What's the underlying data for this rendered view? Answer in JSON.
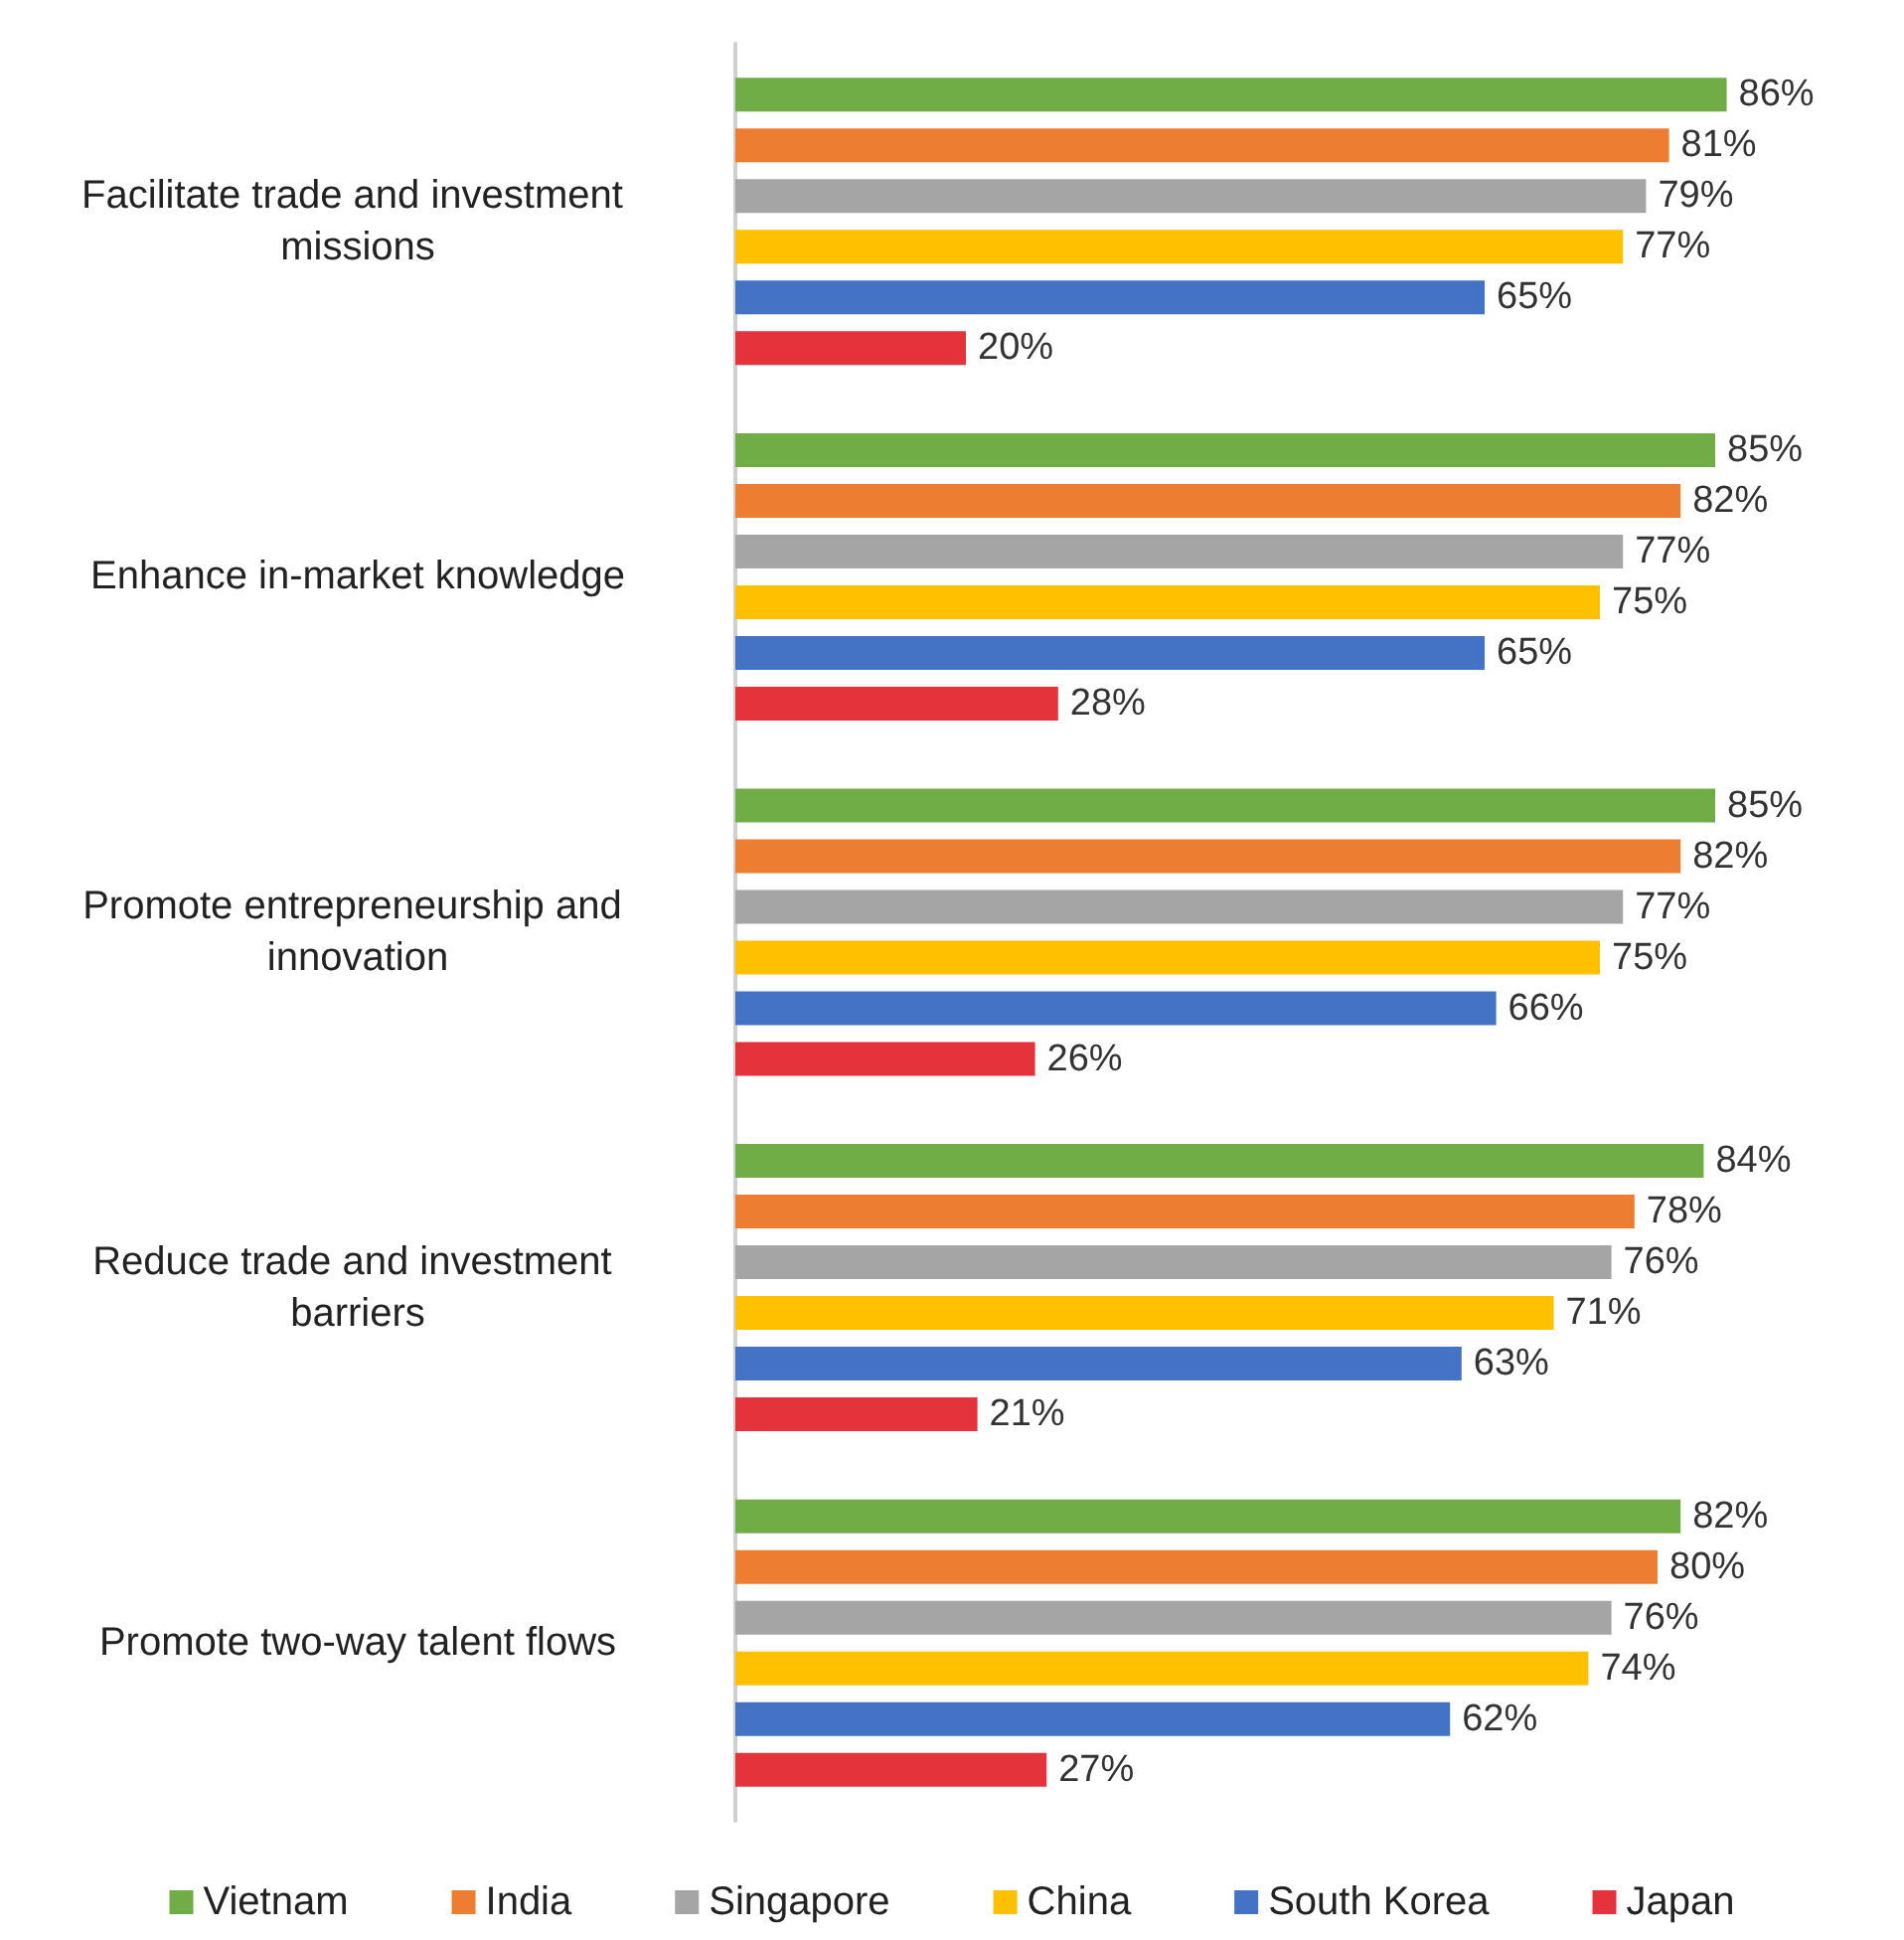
{
  "chart_data": {
    "type": "bar",
    "orientation": "horizontal",
    "categories": [
      "Facilitate trade and investment missions",
      "Enhance in-market knowledge",
      "Promote entrepreneurship and innovation",
      "Reduce trade and investment barriers",
      "Promote two-way talent flows"
    ],
    "series": [
      {
        "name": "Vietnam",
        "color": "#70ad47",
        "values": [
          86,
          85,
          85,
          84,
          82
        ],
        "value_labels": [
          "86%",
          "85%",
          "85%",
          "84%",
          "82%"
        ]
      },
      {
        "name": "India",
        "color": "#ed7d31",
        "values": [
          81,
          82,
          82,
          78,
          80
        ],
        "value_labels": [
          "81%",
          "82%",
          "82%",
          "78%",
          "80%"
        ]
      },
      {
        "name": "Singapore",
        "color": "#a5a5a5",
        "values": [
          79,
          77,
          77,
          76,
          76
        ],
        "value_labels": [
          "79%",
          "77%",
          "77%",
          "76%",
          "76%"
        ]
      },
      {
        "name": "China",
        "color": "#ffc000",
        "values": [
          77,
          75,
          75,
          71,
          74
        ],
        "value_labels": [
          "77%",
          "75%",
          "75%",
          "71%",
          "74%"
        ]
      },
      {
        "name": "South Korea",
        "color": "#4472c4",
        "values": [
          65,
          65,
          66,
          63,
          62
        ],
        "value_labels": [
          "65%",
          "65%",
          "66%",
          "63%",
          "62%"
        ]
      },
      {
        "name": "Japan",
        "color": "#e5333b",
        "values": [
          20,
          28,
          26,
          21,
          27
        ],
        "value_labels": [
          "20%",
          "28%",
          "26%",
          "21%",
          "27%"
        ]
      }
    ],
    "grid": false,
    "legend": "bottom"
  }
}
